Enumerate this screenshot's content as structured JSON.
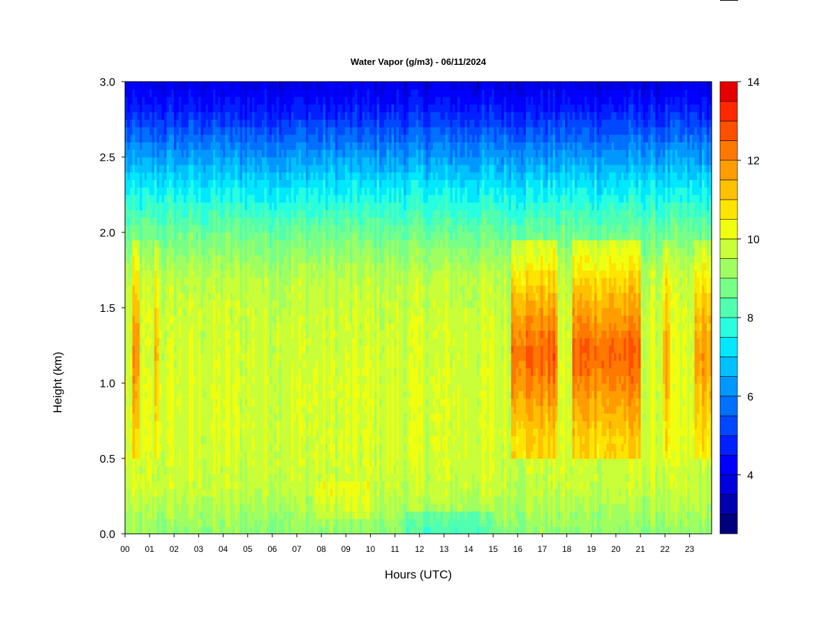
{
  "chart_data": {
    "type": "heatmap",
    "title": "Water Vapor (g/m3) - 06/11/2024",
    "xlabel": "Hours (UTC)",
    "ylabel": "Height (km)",
    "x_ticks": [
      "00",
      "01",
      "02",
      "03",
      "04",
      "05",
      "06",
      "07",
      "08",
      "09",
      "10",
      "11",
      "12",
      "13",
      "14",
      "15",
      "16",
      "17",
      "18",
      "19",
      "20",
      "21",
      "22",
      "23"
    ],
    "xlim": [
      0,
      23.9
    ],
    "y_ticks": [
      "0.0",
      "0.5",
      "1.0",
      "1.5",
      "2.0",
      "2.5",
      "3.0"
    ],
    "ylim": [
      0,
      3.0
    ],
    "colorbar": {
      "ticks": [
        "4",
        "6",
        "8",
        "10",
        "12",
        "14"
      ],
      "range": [
        2.5,
        14
      ],
      "levels": [
        2.5,
        3.0,
        3.5,
        4.0,
        4.5,
        5.0,
        5.5,
        6.0,
        6.5,
        7.0,
        7.5,
        8.0,
        8.5,
        9.0,
        9.5,
        10.0,
        10.5,
        11.0,
        11.5,
        12.0,
        12.5,
        13.0,
        13.5,
        14.0
      ],
      "colors": [
        "#00007f",
        "#0000b0",
        "#0000df",
        "#0000ff",
        "#0020ff",
        "#0048ff",
        "#0070ff",
        "#0098ff",
        "#00c0ff",
        "#00e8ff",
        "#28ffe0",
        "#50ffb0",
        "#78ff88",
        "#a0ff60",
        "#c8ff38",
        "#f0ff10",
        "#ffe400",
        "#ffc000",
        "#ff9c00",
        "#ff7800",
        "#ff5000",
        "#ff2800",
        "#e40000",
        "#b00000"
      ]
    },
    "vertical_profile_g_m3": {
      "height_km": [
        0.0,
        0.3,
        0.6,
        1.0,
        1.4,
        1.7,
        2.0,
        2.3,
        2.6,
        2.8,
        3.0
      ],
      "value": [
        9.0,
        9.7,
        9.9,
        9.9,
        9.8,
        9.6,
        8.6,
        7.3,
        5.8,
        4.7,
        3.8
      ]
    },
    "moist_periods": [
      {
        "start_hour": 0.3,
        "end_hour": 0.55,
        "peak_g_m3": 11.5
      },
      {
        "start_hour": 1.2,
        "end_hour": 1.4,
        "peak_g_m3": 11.0
      },
      {
        "start_hour": 15.7,
        "end_hour": 17.6,
        "peak_g_m3": 12.3
      },
      {
        "start_hour": 18.2,
        "end_hour": 21.0,
        "peak_g_m3": 12.3
      },
      {
        "start_hour": 21.9,
        "end_hour": 22.2,
        "peak_g_m3": 11.3
      },
      {
        "start_hour": 23.2,
        "end_hour": 23.9,
        "peak_g_m3": 11.5
      }
    ]
  }
}
